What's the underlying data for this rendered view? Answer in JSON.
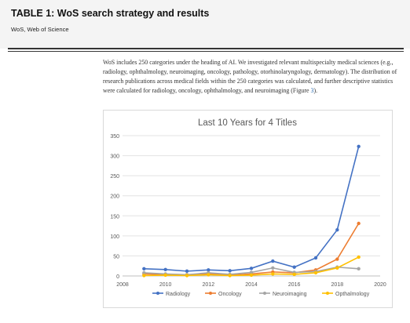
{
  "header": {
    "title": "TABLE 1: WoS search strategy and results",
    "subtitle": "WoS, Web of Science"
  },
  "body_text": {
    "paragraph": "WoS includes 250 categories under the heading of AI. We investigated relevant multispecialty medical sciences (e.g., radiology, ophthalmology, neuroimaging, oncology, pathology, otorhinolaryngology, dermatology). The distribution of research publications across medical fields within the 250 categories was calculated, and further descriptive statistics were calculated for radiology, oncology, ophthalmology, and neuroimaging (Figure ",
    "figure_ref": "3",
    "paragraph_end": ")."
  },
  "chart_data": {
    "type": "line",
    "title": "Last 10 Years for 4 Titles",
    "xlabel": "",
    "ylabel": "",
    "xlim": [
      2008,
      2020
    ],
    "ylim": [
      0,
      350
    ],
    "x_ticks": [
      "2008",
      "2010",
      "2012",
      "2014",
      "2016",
      "2018",
      "2020"
    ],
    "y_ticks": [
      "0",
      "50",
      "100",
      "150",
      "200",
      "250",
      "300",
      "350"
    ],
    "grid": true,
    "legend_position": "bottom",
    "x": [
      2009,
      2010,
      2011,
      2012,
      2013,
      2014,
      2015,
      2016,
      2017,
      2018,
      2019
    ],
    "series": [
      {
        "name": "Radiology",
        "color": "#4472c4",
        "values": [
          18,
          16,
          12,
          15,
          13,
          19,
          37,
          22,
          45,
          115,
          323
        ]
      },
      {
        "name": "Oncology",
        "color": "#ed7d31",
        "values": [
          5,
          4,
          3,
          6,
          2,
          5,
          10,
          8,
          15,
          42,
          131
        ]
      },
      {
        "name": "Neuroimaging",
        "color": "#a5a5a5",
        "values": [
          8,
          5,
          3,
          8,
          4,
          9,
          20,
          9,
          11,
          22,
          18
        ]
      },
      {
        "name": "Opthalmology",
        "color": "#ffc000",
        "values": [
          1,
          2,
          1,
          3,
          1,
          2,
          5,
          4,
          8,
          20,
          47
        ]
      }
    ]
  }
}
